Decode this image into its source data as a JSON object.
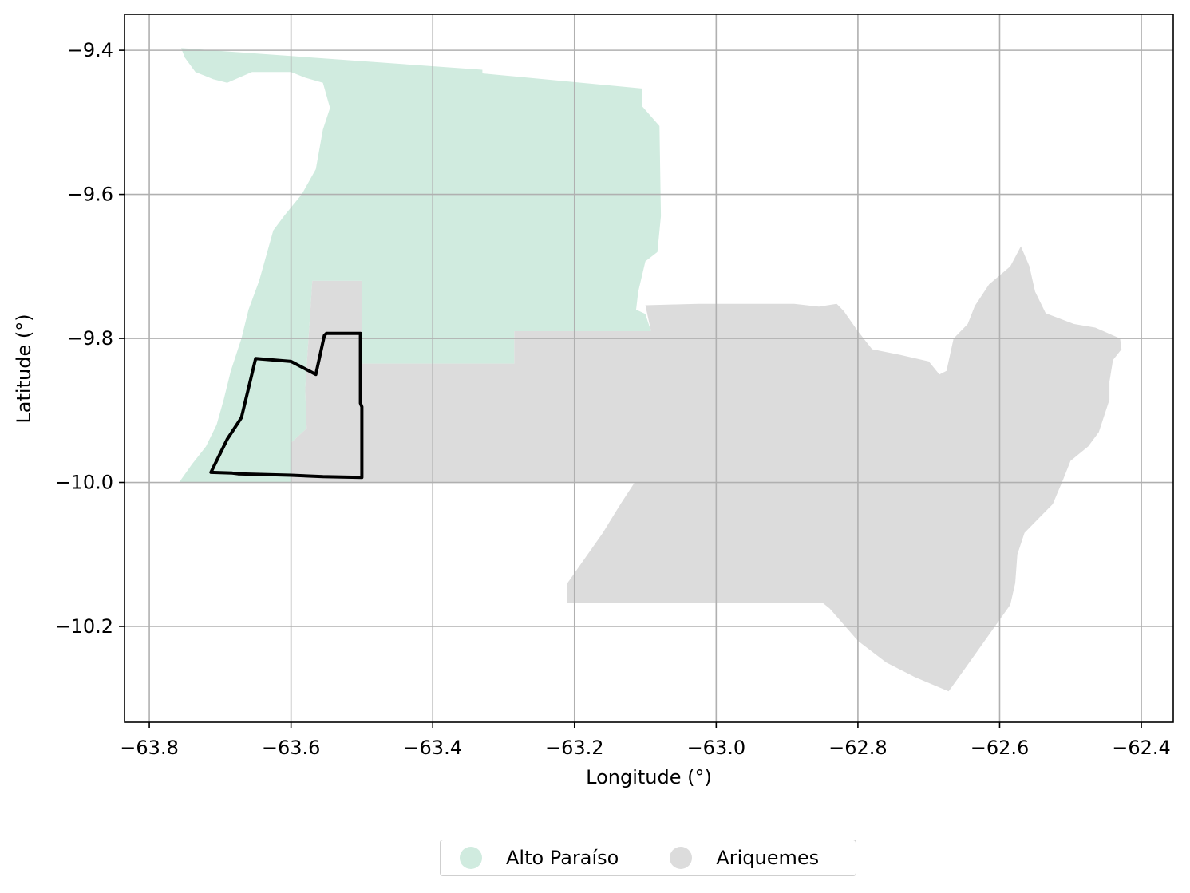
{
  "chart_data": {
    "type": "map",
    "xlabel": "Longitude (°)",
    "ylabel": "Latitude (°)",
    "xlim": [
      -63.835,
      -62.355
    ],
    "ylim": [
      -10.333,
      -9.35
    ],
    "x_ticks": [
      -63.8,
      -63.6,
      -63.4,
      -63.2,
      -63.0,
      -62.8,
      -62.6,
      -62.4
    ],
    "y_ticks": [
      -9.4,
      -9.6,
      -9.8,
      -10.0,
      -10.2
    ],
    "x_tick_labels": [
      "−63.8",
      "−63.6",
      "−63.4",
      "−63.2",
      "−63.0",
      "−62.8",
      "−62.6",
      "−62.4"
    ],
    "y_tick_labels": [
      "−9.4",
      "−9.6",
      "−9.8",
      "−10.0",
      "−10.2"
    ],
    "grid": true,
    "legend_position": "bottom-center",
    "regions": [
      {
        "name": "Alto Paraíso",
        "color": "#d0ebdf",
        "polygon": [
          [
            -63.755,
            -9.397
          ],
          [
            -63.33,
            -9.427
          ],
          [
            -63.33,
            -9.432
          ],
          [
            -63.105,
            -9.453
          ],
          [
            -63.105,
            -9.477
          ],
          [
            -63.08,
            -9.505
          ],
          [
            -63.078,
            -9.63
          ],
          [
            -63.083,
            -9.68
          ],
          [
            -63.1,
            -9.693
          ],
          [
            -63.11,
            -9.735
          ],
          [
            -63.113,
            -9.76
          ],
          [
            -63.1,
            -9.766
          ],
          [
            -63.092,
            -9.79
          ],
          [
            -63.285,
            -9.79
          ],
          [
            -63.285,
            -9.835
          ],
          [
            -63.5,
            -9.835
          ],
          [
            -63.5,
            -9.72
          ],
          [
            -63.57,
            -9.72
          ],
          [
            -63.58,
            -9.87
          ],
          [
            -63.578,
            -9.925
          ],
          [
            -63.6,
            -9.945
          ],
          [
            -63.6,
            -10.0
          ],
          [
            -63.758,
            -10.0
          ],
          [
            -63.74,
            -9.975
          ],
          [
            -63.72,
            -9.95
          ],
          [
            -63.705,
            -9.92
          ],
          [
            -63.695,
            -9.885
          ],
          [
            -63.685,
            -9.845
          ],
          [
            -63.67,
            -9.8
          ],
          [
            -63.66,
            -9.76
          ],
          [
            -63.645,
            -9.72
          ],
          [
            -63.635,
            -9.685
          ],
          [
            -63.625,
            -9.65
          ],
          [
            -63.61,
            -9.63
          ],
          [
            -63.585,
            -9.6
          ],
          [
            -63.565,
            -9.565
          ],
          [
            -63.555,
            -9.51
          ],
          [
            -63.545,
            -9.48
          ],
          [
            -63.555,
            -9.445
          ],
          [
            -63.58,
            -9.438
          ],
          [
            -63.6,
            -9.43
          ],
          [
            -63.63,
            -9.43
          ],
          [
            -63.655,
            -9.43
          ],
          [
            -63.69,
            -9.445
          ],
          [
            -63.71,
            -9.44
          ],
          [
            -63.735,
            -9.43
          ],
          [
            -63.75,
            -9.41
          ]
        ]
      },
      {
        "name": "Ariquemes",
        "color": "#dcdcdc",
        "polygon": [
          [
            -63.57,
            -9.72
          ],
          [
            -63.5,
            -9.72
          ],
          [
            -63.5,
            -9.835
          ],
          [
            -63.285,
            -9.835
          ],
          [
            -63.285,
            -9.79
          ],
          [
            -63.092,
            -9.79
          ],
          [
            -63.1,
            -9.754
          ],
          [
            -63.025,
            -9.752
          ],
          [
            -62.89,
            -9.752
          ],
          [
            -62.855,
            -9.756
          ],
          [
            -62.83,
            -9.752
          ],
          [
            -62.82,
            -9.762
          ],
          [
            -62.8,
            -9.79
          ],
          [
            -62.78,
            -9.815
          ],
          [
            -62.74,
            -9.823
          ],
          [
            -62.7,
            -9.832
          ],
          [
            -62.685,
            -9.85
          ],
          [
            -62.675,
            -9.845
          ],
          [
            -62.665,
            -9.8
          ],
          [
            -62.645,
            -9.78
          ],
          [
            -62.635,
            -9.755
          ],
          [
            -62.615,
            -9.725
          ],
          [
            -62.585,
            -9.7
          ],
          [
            -62.57,
            -9.672
          ],
          [
            -62.558,
            -9.7
          ],
          [
            -62.55,
            -9.735
          ],
          [
            -62.535,
            -9.765
          ],
          [
            -62.495,
            -9.78
          ],
          [
            -62.465,
            -9.785
          ],
          [
            -62.43,
            -9.8
          ],
          [
            -62.428,
            -9.815
          ],
          [
            -62.44,
            -9.83
          ],
          [
            -62.445,
            -9.86
          ],
          [
            -62.445,
            -9.885
          ],
          [
            -62.46,
            -9.93
          ],
          [
            -62.475,
            -9.95
          ],
          [
            -62.5,
            -9.97
          ],
          [
            -62.51,
            -9.995
          ],
          [
            -62.525,
            -10.03
          ],
          [
            -62.545,
            -10.05
          ],
          [
            -62.565,
            -10.07
          ],
          [
            -62.575,
            -10.1
          ],
          [
            -62.578,
            -10.14
          ],
          [
            -62.585,
            -10.17
          ],
          [
            -62.65,
            -10.26
          ],
          [
            -62.672,
            -10.29
          ],
          [
            -62.72,
            -10.27
          ],
          [
            -62.76,
            -10.25
          ],
          [
            -62.8,
            -10.22
          ],
          [
            -62.84,
            -10.175
          ],
          [
            -62.85,
            -10.167
          ],
          [
            -63.21,
            -10.167
          ],
          [
            -63.21,
            -10.14
          ],
          [
            -63.185,
            -10.105
          ],
          [
            -63.16,
            -10.07
          ],
          [
            -63.135,
            -10.03
          ],
          [
            -63.115,
            -10.0
          ],
          [
            -63.6,
            -10.0
          ],
          [
            -63.6,
            -9.945
          ],
          [
            -63.578,
            -9.925
          ],
          [
            -63.58,
            -9.87
          ]
        ]
      }
    ],
    "outline": {
      "color": "#000000",
      "polygon": [
        [
          -63.713,
          -9.986
        ],
        [
          -63.683,
          -9.987
        ],
        [
          -63.675,
          -9.988
        ],
        [
          -63.6,
          -9.99
        ],
        [
          -63.555,
          -9.992
        ],
        [
          -63.5,
          -9.993
        ],
        [
          -63.5,
          -9.895
        ],
        [
          -63.502,
          -9.89
        ],
        [
          -63.502,
          -9.793
        ],
        [
          -63.55,
          -9.793
        ],
        [
          -63.553,
          -9.796
        ],
        [
          -63.565,
          -9.85
        ],
        [
          -63.6,
          -9.832
        ],
        [
          -63.65,
          -9.828
        ],
        [
          -63.67,
          -9.91
        ],
        [
          -63.69,
          -9.94
        ]
      ]
    }
  },
  "legend": {
    "items": [
      {
        "label": "Alto Paraíso",
        "color": "#d0ebdf"
      },
      {
        "label": "Ariquemes",
        "color": "#dcdcdc"
      }
    ]
  }
}
